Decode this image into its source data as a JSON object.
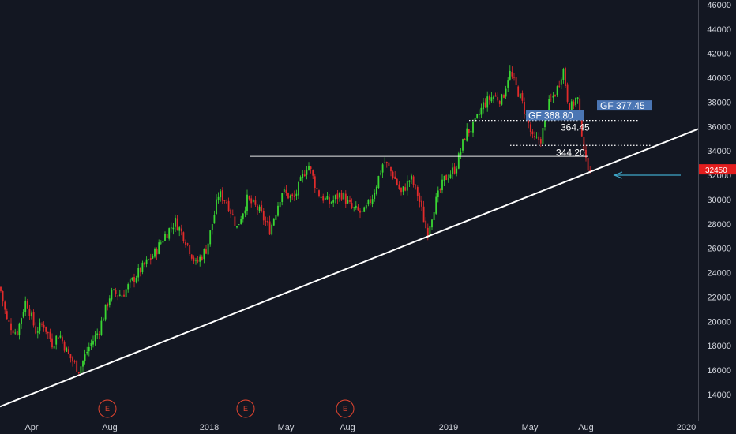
{
  "chart_data": {
    "type": "candlestick",
    "y_axis": {
      "ticks": [
        "46000",
        "44000",
        "42000",
        "40000",
        "38000",
        "36000",
        "34000",
        "32000",
        "30000",
        "28000",
        "26000",
        "24000",
        "22000",
        "20000",
        "18000",
        "16000",
        "14000"
      ],
      "range": [
        12500,
        46400
      ],
      "position": "right"
    },
    "x_axis": {
      "ticks": [
        "Apr",
        "Aug",
        "2018",
        "May",
        "Aug",
        "2019",
        "May",
        "Aug",
        "2020"
      ]
    },
    "colors": {
      "background": "#131722",
      "up": "#3ad833",
      "down": "#e22b2b",
      "trendline": "#ffffff",
      "label_box": "#4b76b4",
      "last_price_box": "#e41e1e",
      "arrow": "#3fa7c9",
      "event": "#e1442f"
    },
    "price_path": [
      [
        0,
        22800
      ],
      [
        9,
        20000
      ],
      [
        21,
        19000
      ],
      [
        33,
        21800
      ],
      [
        45,
        19200
      ],
      [
        55,
        19800
      ],
      [
        66,
        18200
      ],
      [
        75,
        19000
      ],
      [
        86,
        17300
      ],
      [
        100,
        16000
      ],
      [
        112,
        17800
      ],
      [
        125,
        19200
      ],
      [
        140,
        22300
      ],
      [
        155,
        22200
      ],
      [
        175,
        24000
      ],
      [
        195,
        25500
      ],
      [
        210,
        27200
      ],
      [
        222,
        28200
      ],
      [
        235,
        26700
      ],
      [
        248,
        24700
      ],
      [
        262,
        26000
      ],
      [
        277,
        30500
      ],
      [
        288,
        29800
      ],
      [
        300,
        27700
      ],
      [
        313,
        30000
      ],
      [
        327,
        29200
      ],
      [
        342,
        27500
      ],
      [
        357,
        30700
      ],
      [
        372,
        30000
      ],
      [
        390,
        33000
      ],
      [
        403,
        30500
      ],
      [
        417,
        29700
      ],
      [
        432,
        30500
      ],
      [
        445,
        29300
      ],
      [
        460,
        28800
      ],
      [
        472,
        30300
      ],
      [
        486,
        33200
      ],
      [
        498,
        32000
      ],
      [
        508,
        30500
      ],
      [
        520,
        31800
      ],
      [
        530,
        30200
      ],
      [
        541,
        27200
      ],
      [
        550,
        29500
      ],
      [
        563,
        31700
      ],
      [
        577,
        32600
      ],
      [
        590,
        35500
      ],
      [
        600,
        36000
      ],
      [
        612,
        37800
      ],
      [
        624,
        38500
      ],
      [
        636,
        38200
      ],
      [
        645,
        40500
      ],
      [
        657,
        38700
      ],
      [
        666,
        37000
      ],
      [
        675,
        34800
      ],
      [
        685,
        35000
      ],
      [
        695,
        37800
      ],
      [
        705,
        39000
      ],
      [
        713,
        40800
      ],
      [
        721,
        37300
      ],
      [
        731,
        38500
      ],
      [
        735,
        36500
      ],
      [
        742,
        33000
      ],
      [
        749,
        32450
      ]
    ],
    "trendline": {
      "from": {
        "date": "Mar 2017",
        "value": 13000
      },
      "to": {
        "date": "Jan 2020",
        "value": 35800
      }
    },
    "levels": [
      {
        "label": "364.45",
        "value": 36500
      },
      {
        "label": "344.20",
        "value": 34450
      }
    ],
    "horizontal_line": {
      "value": 33550
    },
    "labels": [
      {
        "text": "GF 368.80",
        "value": 36900
      },
      {
        "text": "GF 377.45",
        "value": 37700
      }
    ],
    "last_price": {
      "text": "32450",
      "value": 32450
    },
    "events": [
      "E",
      "E",
      "E"
    ],
    "grid": false
  }
}
